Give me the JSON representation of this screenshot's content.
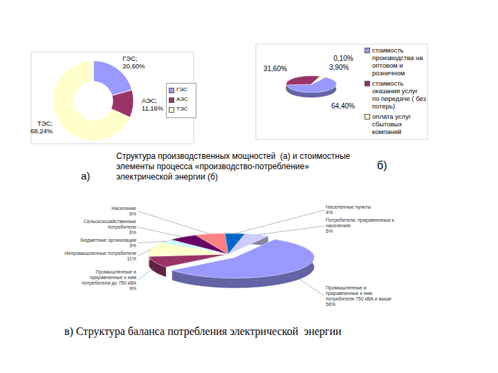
{
  "caption": "Структура производственных мощностей  (а) и стоимостные элементы процесса «производство-потребление» электрической энергии (б)",
  "chart_data": [
    {
      "type": "donut",
      "title": "а)",
      "categories": [
        "ГЭС",
        "АЭС",
        "ТЭС"
      ],
      "values": [
        20.6,
        11.16,
        68.24
      ],
      "value_labels": [
        "ГЭС; 20,60%",
        "АЭС; 11,16%",
        "ТЭС; 68,24%"
      ],
      "colors": [
        "#9999ff",
        "#993366",
        "#ffffcc"
      ],
      "data_labels": true,
      "legend": "right"
    },
    {
      "type": "pie3d",
      "title": "б)",
      "categories": [
        "стоимость производства на оптовом и розничном",
        "стоимость оказания услуг по передаче ( без потерь)",
        "оплата услуг сбытовых компаний",
        null
      ],
      "values": [
        64.4,
        31.6,
        3.9,
        0.1
      ],
      "value_labels": [
        "64,40%",
        "31,60%",
        "3,90%",
        "0,10%"
      ],
      "colors": [
        "#9999ff",
        "#993366",
        "#ffffcc",
        "#ccffff"
      ],
      "data_labels": true,
      "legend": "right"
    },
    {
      "type": "pie3d",
      "title": "в) Структура баланса потребления электрической  энергии",
      "categories": [
        "Промышленные и приравненные к ним потребители 750 кВА и выше",
        "Промышленные и приравненные к ним потребители до 750 кВА",
        "Непромышленные потребители",
        "Бюджетные организации",
        "Сельскохозяйственные потребители",
        "Население",
        "Населенные пункты",
        "Потребители, приравненные к населению"
      ],
      "values": [
        56,
        9,
        11,
        3,
        6,
        6,
        4,
        5
      ],
      "value_labels": [
        "56%",
        "9%",
        "11%",
        "3%",
        "6%",
        "6%",
        "4%",
        "5%"
      ],
      "colors": [
        "#9999ff",
        "#993366",
        "#ffffcc",
        "#ccffff",
        "#660066",
        "#ff8080",
        "#0066cc",
        "#ccccff"
      ],
      "data_labels": true
    }
  ]
}
